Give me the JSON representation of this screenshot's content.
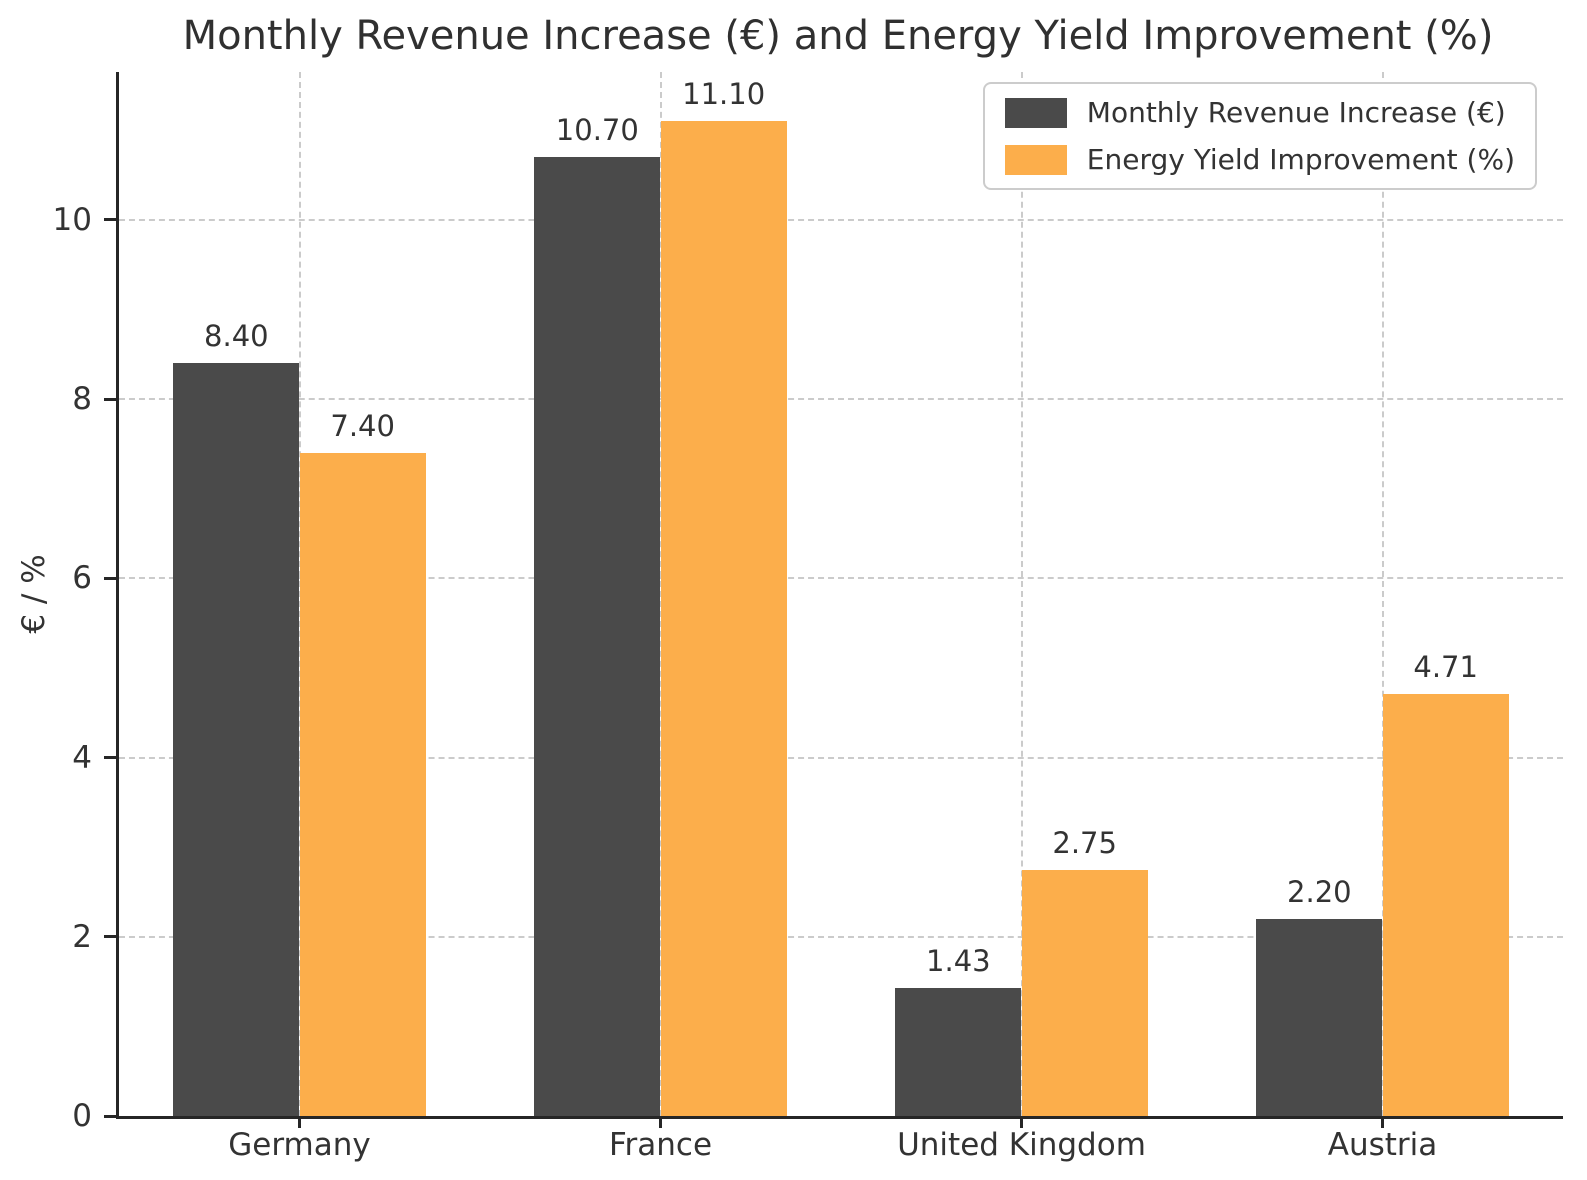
{
  "chart_data": {
    "type": "bar",
    "title": "Monthly Revenue Increase (€) and Energy Yield Improvement (%)",
    "xlabel": "",
    "ylabel": "€ / %",
    "categories": [
      "Germany",
      "France",
      "United Kingdom",
      "Austria"
    ],
    "series": [
      {
        "name": "Monthly Revenue Increase (€)",
        "color": "#4A4A4A",
        "values": [
          8.4,
          10.7,
          1.43,
          2.2
        ],
        "labels": [
          "8.40",
          "10.70",
          "1.43",
          "2.20"
        ]
      },
      {
        "name": "Energy Yield Improvement (%)",
        "color": "#FCAE4B",
        "values": [
          7.4,
          11.1,
          2.75,
          4.71
        ],
        "labels": [
          "7.40",
          "11.10",
          "2.75",
          "4.71"
        ]
      }
    ],
    "yticks": [
      0,
      2,
      4,
      6,
      8,
      10
    ],
    "ylim": [
      0,
      11.65
    ],
    "bar_width_frac": 0.35,
    "grid": "dashed-both-axes",
    "legend_position": "upper right",
    "colors": {
      "text": "#333333",
      "spine": "#262626",
      "gridline": "#cbcbcb",
      "background": "#ffffff"
    }
  }
}
